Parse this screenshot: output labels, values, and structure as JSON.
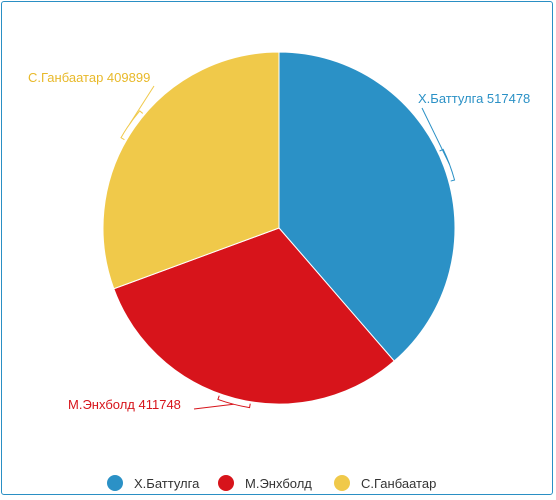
{
  "chart_data": {
    "type": "pie",
    "title": "",
    "categories": [
      "Х.Баттулга",
      "М.Энхболд",
      "С.Ганбаатар"
    ],
    "values": [
      517478,
      411748,
      409899
    ],
    "colors": [
      "#2b91c6",
      "#d7141b",
      "#f0c94a"
    ],
    "data_labels": [
      "Х.Баттулга 517478",
      "М.Энхболд 411748",
      "С.Ганбаатар 409899"
    ],
    "legend": {
      "position": "bottom",
      "entries": [
        "Х.Баттулга",
        "М.Энхболд",
        "С.Ганбаатар"
      ]
    }
  }
}
